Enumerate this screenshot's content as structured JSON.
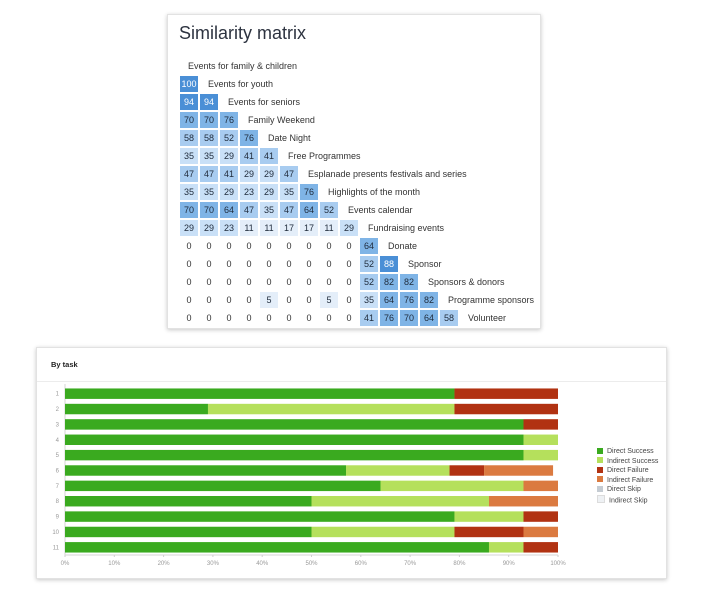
{
  "chart_data": [
    {
      "type": "heatmap",
      "title": "Similarity matrix",
      "rows": [
        {
          "label": "Events for family & children",
          "values": []
        },
        {
          "label": "Events for youth",
          "values": [
            100
          ]
        },
        {
          "label": "Events for seniors",
          "values": [
            94,
            94
          ]
        },
        {
          "label": "Family Weekend",
          "values": [
            70,
            70,
            76
          ]
        },
        {
          "label": "Date Night",
          "values": [
            58,
            58,
            52,
            76
          ]
        },
        {
          "label": "Free Programmes",
          "values": [
            35,
            35,
            29,
            41,
            41
          ]
        },
        {
          "label": "Esplanade presents festivals and series",
          "values": [
            47,
            47,
            41,
            29,
            29,
            47
          ]
        },
        {
          "label": "Highlights of the month",
          "values": [
            35,
            35,
            29,
            23,
            29,
            35,
            76
          ]
        },
        {
          "label": "Events calendar",
          "values": [
            70,
            70,
            64,
            47,
            35,
            47,
            64,
            52
          ]
        },
        {
          "label": "Fundraising events",
          "values": [
            29,
            29,
            23,
            11,
            11,
            17,
            17,
            11,
            29
          ]
        },
        {
          "label": "Donate",
          "values": [
            0,
            0,
            0,
            0,
            0,
            0,
            0,
            0,
            0,
            64
          ]
        },
        {
          "label": "Sponsor",
          "values": [
            0,
            0,
            0,
            0,
            0,
            0,
            0,
            0,
            0,
            52,
            88
          ]
        },
        {
          "label": "Sponsors & donors",
          "values": [
            0,
            0,
            0,
            0,
            0,
            0,
            0,
            0,
            0,
            52,
            82,
            82
          ]
        },
        {
          "label": "Programme sponsors",
          "values": [
            0,
            0,
            0,
            0,
            5,
            0,
            0,
            5,
            0,
            35,
            64,
            76,
            82
          ]
        },
        {
          "label": "Volunteer",
          "values": [
            0,
            0,
            0,
            0,
            0,
            0,
            0,
            0,
            0,
            41,
            76,
            70,
            64,
            58
          ]
        }
      ]
    },
    {
      "type": "bar",
      "orientation": "horizontal",
      "stacked": true,
      "title": "By task",
      "categories": [
        "1",
        "2",
        "3",
        "4",
        "5",
        "6",
        "7",
        "8",
        "9",
        "10",
        "11"
      ],
      "xlim": [
        0,
        100
      ],
      "x_ticks": [
        "0%",
        "10%",
        "20%",
        "30%",
        "40%",
        "50%",
        "60%",
        "70%",
        "80%",
        "90%",
        "100%"
      ],
      "legend_position": "right",
      "series": [
        {
          "name": "Direct Success",
          "color": "#3aaa1f",
          "values": [
            79,
            29,
            93,
            93,
            93,
            57,
            64,
            50,
            79,
            50,
            86
          ]
        },
        {
          "name": "Indirect Success",
          "color": "#b5e05c",
          "values": [
            0,
            50,
            0,
            7,
            7,
            21,
            29,
            36,
            14,
            29,
            7
          ]
        },
        {
          "name": "Direct Failure",
          "color": "#b13212",
          "values": [
            21,
            21,
            7,
            0,
            0,
            7,
            0,
            0,
            7,
            14,
            7
          ]
        },
        {
          "name": "Indirect Failure",
          "color": "#db7a40",
          "values": [
            0,
            0,
            0,
            0,
            0,
            14,
            7,
            14,
            0,
            7,
            0
          ]
        },
        {
          "name": "Direct Skip",
          "color": "#c5ccd3",
          "values": [
            0,
            0,
            0,
            0,
            0,
            0,
            0,
            0,
            0,
            0,
            0
          ]
        },
        {
          "name": "Indirect Skip",
          "color": "#eef1f4",
          "values": [
            0,
            0,
            0,
            0,
            0,
            0,
            0,
            0,
            0,
            0,
            0
          ]
        }
      ]
    }
  ]
}
